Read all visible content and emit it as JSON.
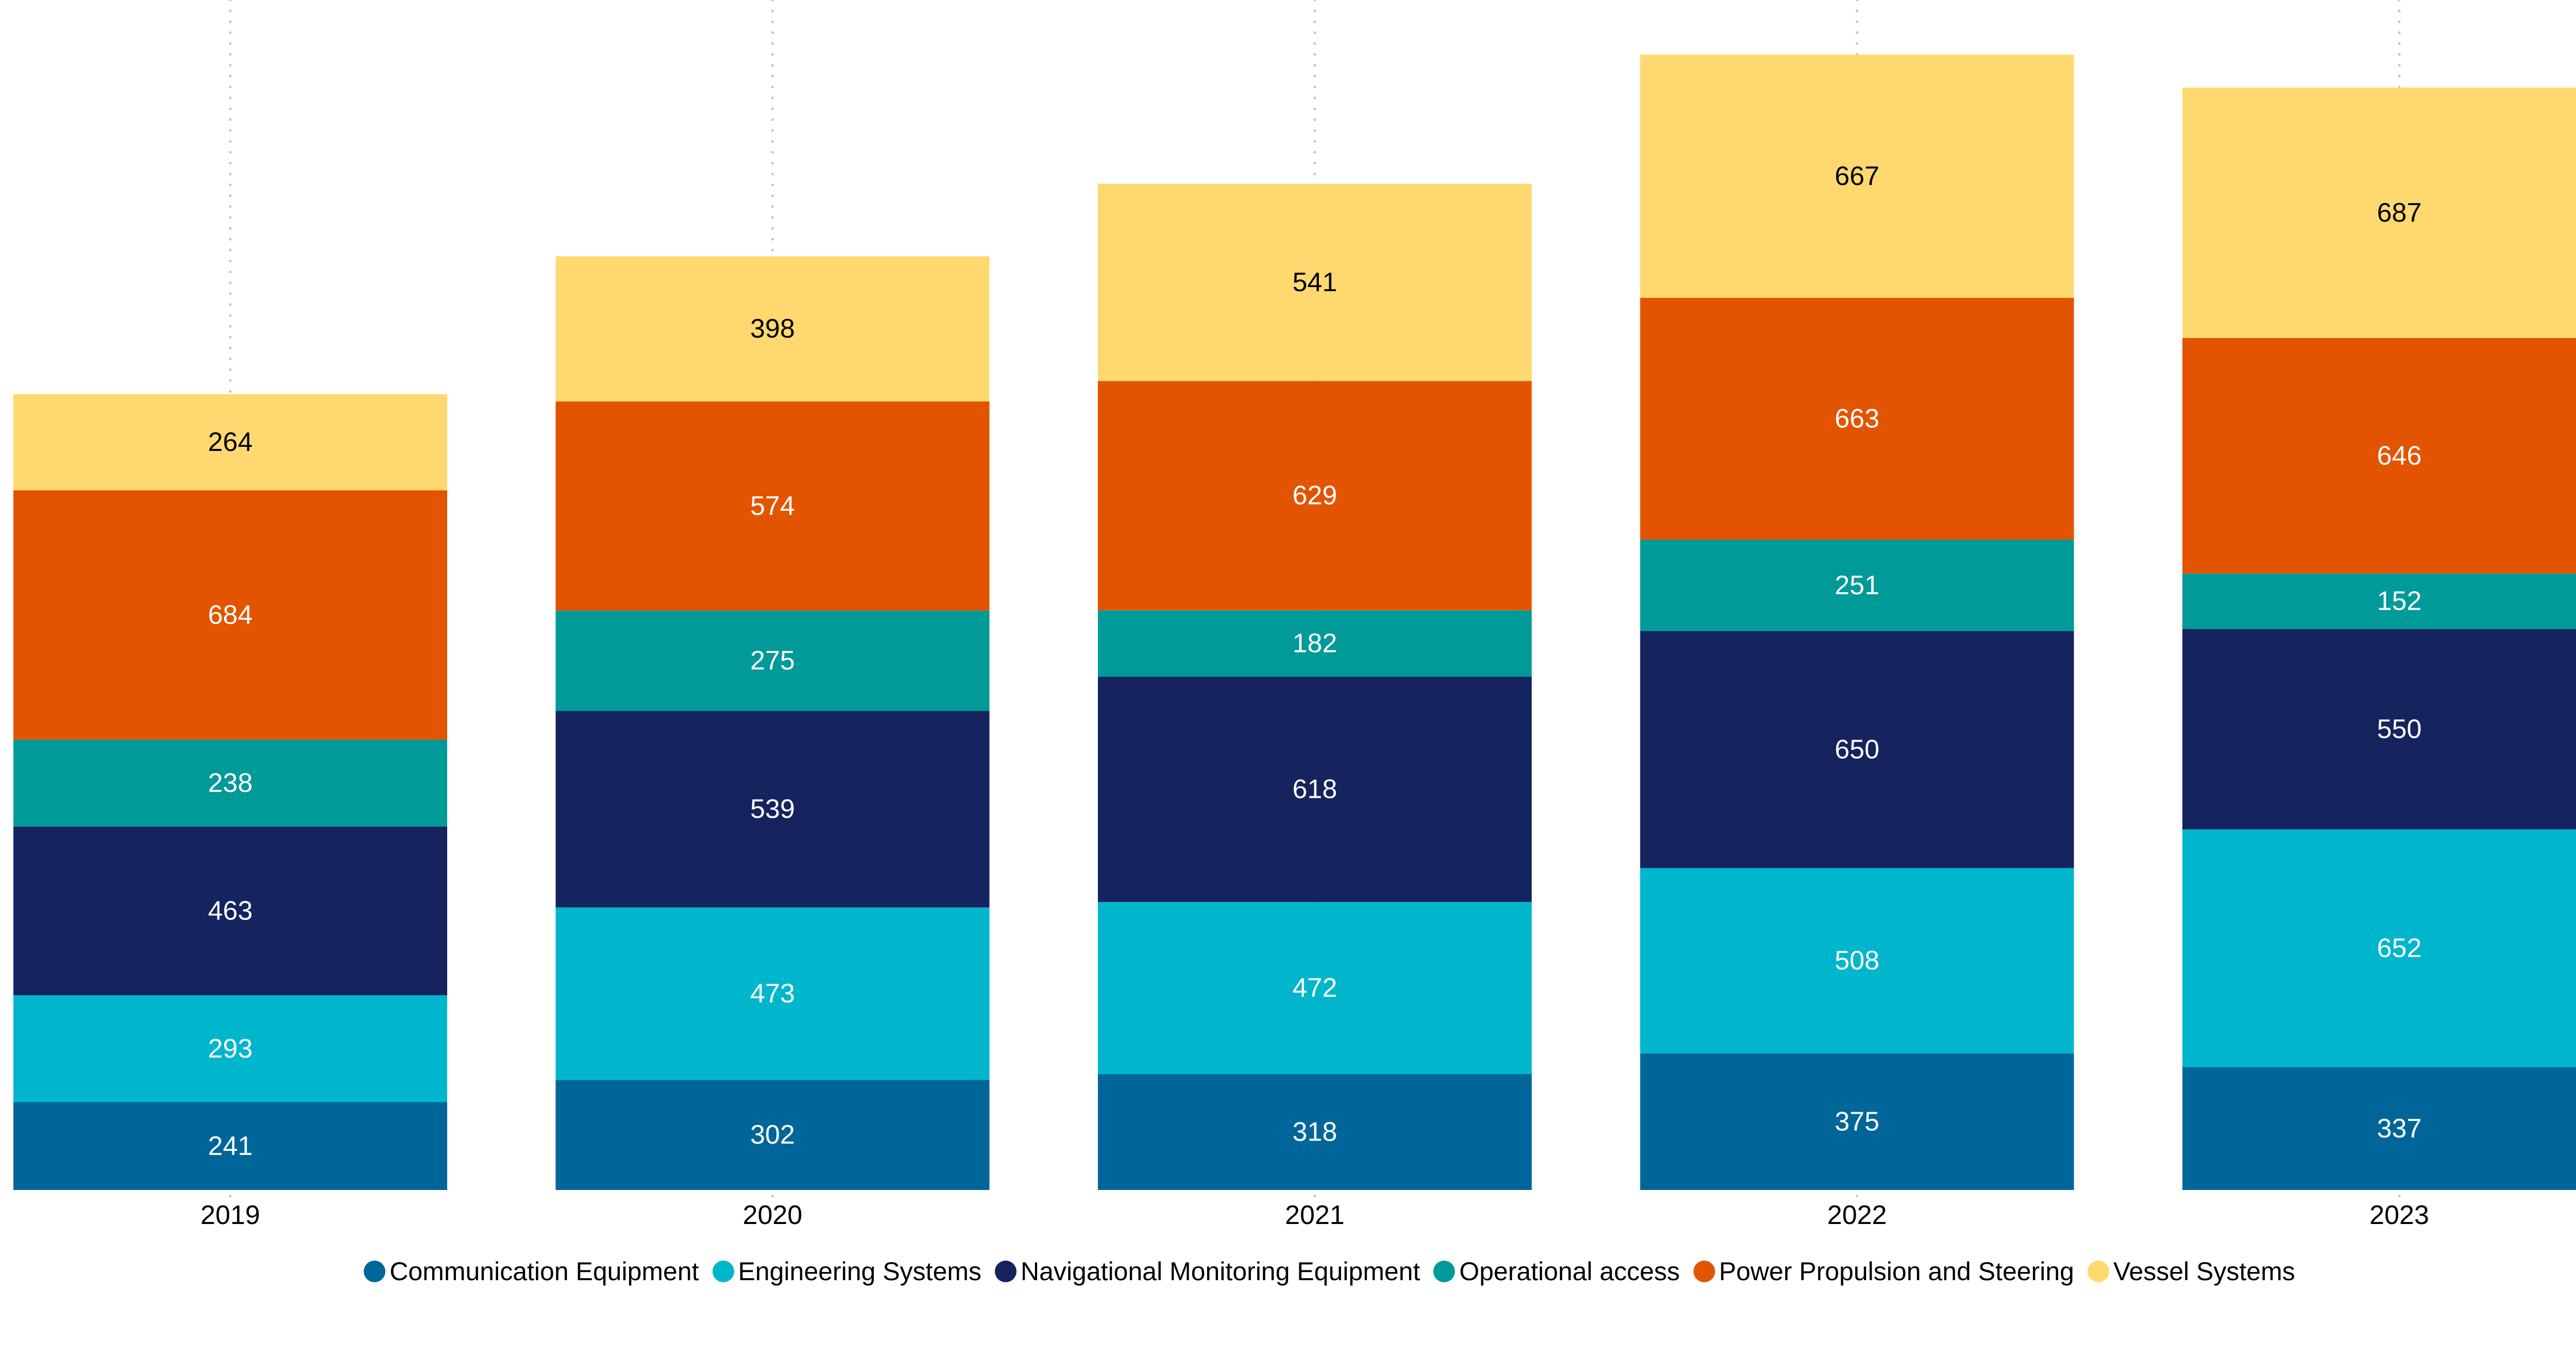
{
  "chart_data": {
    "type": "bar",
    "stacked": true,
    "title": "",
    "xlabel": "",
    "ylabel": "",
    "categories": [
      "2019",
      "2020",
      "2021",
      "2022",
      "2023"
    ],
    "series": [
      {
        "name": "Communication Equipment",
        "color": "#00669A",
        "label_color": "#FFFFFF",
        "values": [
          241,
          302,
          318,
          375,
          337
        ]
      },
      {
        "name": "Engineering Systems",
        "color": "#00B6CD",
        "label_color": "#FFFFFF",
        "values": [
          293,
          473,
          472,
          508,
          652
        ]
      },
      {
        "name": "Navigational Monitoring Equipment",
        "color": "#15235F",
        "label_color": "#FFFFFF",
        "values": [
          463,
          539,
          618,
          650,
          550
        ]
      },
      {
        "name": "Operational access",
        "color": "#009A99",
        "label_color": "#FFFFFF",
        "values": [
          238,
          275,
          182,
          251,
          152
        ]
      },
      {
        "name": "Power Propulsion and Steering",
        "color": "#E35400",
        "label_color": "#FFFFFF",
        "values": [
          684,
          574,
          629,
          663,
          646
        ]
      },
      {
        "name": "Vessel Systems",
        "color": "#FFD970",
        "label_color": "#000000",
        "values": [
          264,
          398,
          541,
          667,
          687
        ]
      }
    ],
    "ylim": [
      0,
      3264
    ],
    "y_axis_visible": false,
    "grid": "dotted vertical lines at each category",
    "data_labels": true,
    "legend_position": "bottom"
  }
}
